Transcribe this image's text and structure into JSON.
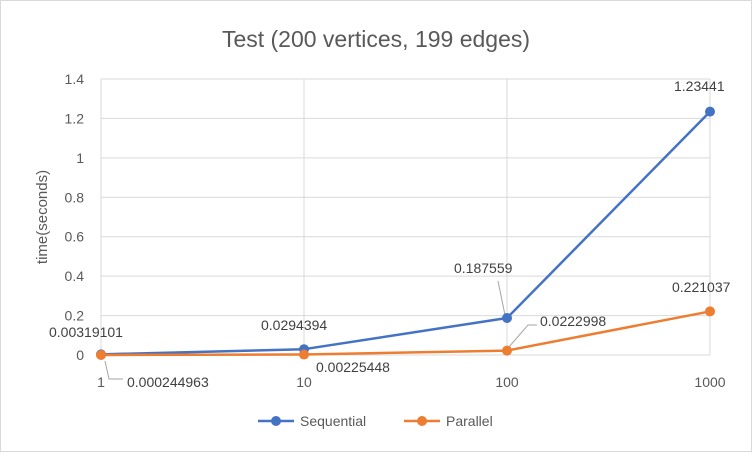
{
  "chart_data": {
    "type": "line",
    "title": "Test (200 vertices, 199 edges)",
    "xlabel": "",
    "ylabel": "time(seconds)",
    "categories": [
      "1",
      "10",
      "100",
      "1000"
    ],
    "ylim": [
      0,
      1.4
    ],
    "yticks": [
      "0",
      "0.2",
      "0.4",
      "0.6",
      "0.8",
      "1",
      "1.2",
      "1.4"
    ],
    "grid": true,
    "legend_position": "bottom",
    "series": [
      {
        "name": "Sequential",
        "color": "#4472c4",
        "values": [
          0.00319101,
          0.0294394,
          0.187559,
          1.23441
        ],
        "labels": [
          "0.00319101",
          "0.0294394",
          "0.187559",
          "1.23441"
        ]
      },
      {
        "name": "Parallel",
        "color": "#ed7d31",
        "values": [
          0.000244963,
          0.00225448,
          0.0222998,
          0.221037
        ],
        "labels": [
          "0.000244963",
          "0.00225448",
          "0.0222998",
          "0.221037"
        ]
      }
    ]
  }
}
